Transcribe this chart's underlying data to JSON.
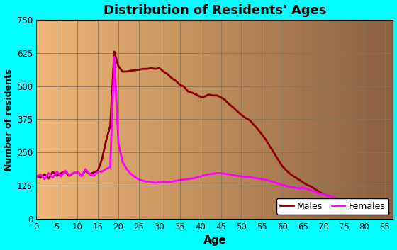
{
  "title": "Distribution of Residents' Ages",
  "xlabel": "Age",
  "ylabel": "Number of residents",
  "background_outer": "#00FFFF",
  "grid_color": "#8B7355",
  "males_color": "#8B0000",
  "females_color": "#FF00FF",
  "ylim": [
    0,
    750
  ],
  "xlim": [
    0,
    87
  ],
  "yticks": [
    0,
    125,
    250,
    375,
    500,
    625,
    750
  ],
  "xticks": [
    0,
    5,
    10,
    15,
    20,
    25,
    30,
    35,
    40,
    45,
    50,
    55,
    60,
    65,
    70,
    75,
    80,
    85
  ],
  "males_x": [
    0,
    1,
    2,
    3,
    4,
    5,
    6,
    7,
    8,
    9,
    10,
    11,
    12,
    13,
    14,
    15,
    16,
    17,
    18,
    19,
    20,
    21,
    22,
    23,
    24,
    25,
    26,
    27,
    28,
    29,
    30,
    31,
    32,
    33,
    34,
    35,
    36,
    37,
    38,
    39,
    40,
    41,
    42,
    43,
    44,
    45,
    46,
    47,
    48,
    49,
    50,
    51,
    52,
    53,
    54,
    55,
    56,
    57,
    58,
    59,
    60,
    61,
    62,
    63,
    64,
    65,
    66,
    67,
    68,
    69,
    70,
    71,
    72,
    73,
    74,
    75,
    76,
    77,
    78,
    79,
    80,
    81,
    82,
    83,
    84,
    85,
    86
  ],
  "males_y": [
    162,
    155,
    168,
    152,
    178,
    162,
    172,
    178,
    162,
    172,
    178,
    162,
    182,
    168,
    175,
    182,
    225,
    295,
    350,
    630,
    575,
    555,
    555,
    558,
    560,
    562,
    565,
    565,
    568,
    565,
    568,
    555,
    545,
    530,
    520,
    505,
    498,
    480,
    475,
    468,
    460,
    460,
    468,
    465,
    465,
    458,
    448,
    432,
    420,
    405,
    392,
    380,
    372,
    355,
    338,
    318,
    298,
    272,
    248,
    222,
    198,
    182,
    168,
    158,
    148,
    138,
    128,
    122,
    112,
    102,
    93,
    88,
    82,
    78,
    73,
    68,
    62,
    58,
    52,
    48,
    43,
    40,
    36,
    32,
    28,
    26,
    22
  ],
  "females_x": [
    0,
    1,
    2,
    3,
    4,
    5,
    6,
    7,
    8,
    9,
    10,
    11,
    12,
    13,
    14,
    15,
    16,
    17,
    18,
    19,
    20,
    21,
    22,
    23,
    24,
    25,
    26,
    27,
    28,
    29,
    30,
    31,
    32,
    33,
    34,
    35,
    36,
    37,
    38,
    39,
    40,
    41,
    42,
    43,
    44,
    45,
    46,
    47,
    48,
    49,
    50,
    51,
    52,
    53,
    54,
    55,
    56,
    57,
    58,
    59,
    60,
    61,
    62,
    63,
    64,
    65,
    66,
    67,
    68,
    69,
    70,
    71,
    72,
    73,
    74,
    75,
    76,
    77,
    78,
    79,
    80,
    81,
    82,
    83,
    84,
    85,
    86
  ],
  "females_y": [
    158,
    168,
    150,
    172,
    155,
    178,
    160,
    182,
    165,
    172,
    178,
    160,
    188,
    168,
    162,
    178,
    178,
    188,
    195,
    610,
    285,
    215,
    188,
    170,
    158,
    148,
    143,
    140,
    138,
    136,
    138,
    140,
    138,
    140,
    143,
    146,
    148,
    150,
    152,
    155,
    160,
    165,
    168,
    170,
    172,
    172,
    170,
    168,
    165,
    162,
    160,
    158,
    158,
    155,
    152,
    150,
    147,
    143,
    138,
    133,
    128,
    124,
    120,
    118,
    115,
    118,
    113,
    108,
    102,
    96,
    92,
    88,
    82,
    78,
    73,
    68,
    62,
    58,
    55,
    52,
    50,
    47,
    44,
    42,
    38,
    35,
    32
  ]
}
